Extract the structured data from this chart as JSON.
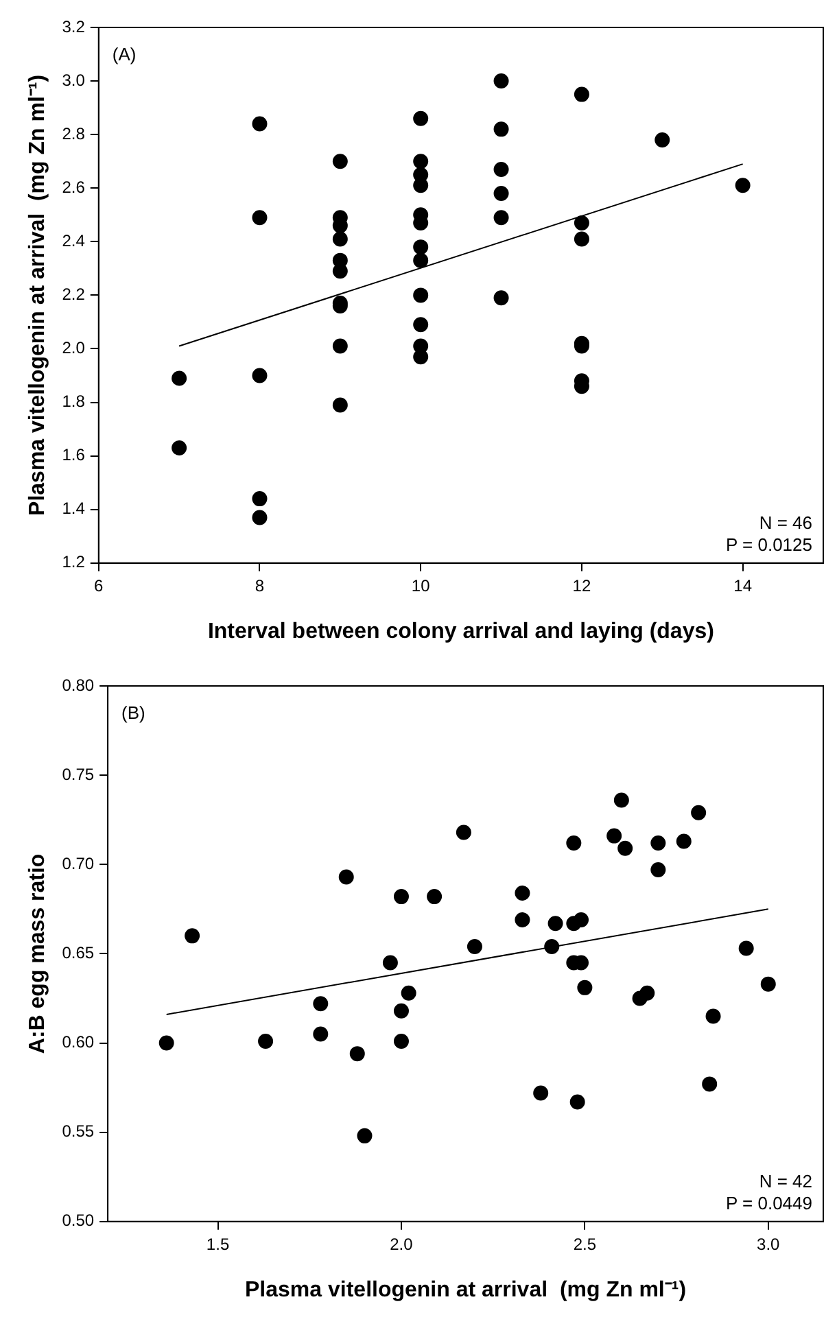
{
  "chart_data": [
    {
      "type": "scatter",
      "xlabel": "Interval between colony arrival and laying (days)",
      "ylabel": "Plasma vitellogenin at arrival  (mg Zn ml⁻¹)",
      "xlim": [
        6,
        15
      ],
      "xticks": [
        6,
        8,
        10,
        12,
        14
      ],
      "ylim": [
        1.2,
        3.2
      ],
      "yticks": [
        {
          "value": 1.2,
          "label": "1.2"
        },
        {
          "value": 1.4,
          "label": "1.4"
        },
        {
          "value": 1.6,
          "label": "1.6"
        },
        {
          "value": 1.8,
          "label": "1.8"
        },
        {
          "value": 2.0,
          "label": "2.0"
        },
        {
          "value": 2.2,
          "label": "2.2"
        },
        {
          "value": 2.4,
          "label": "2.4"
        },
        {
          "value": 2.6,
          "label": "2.6"
        },
        {
          "value": 2.8,
          "label": "2.8"
        },
        {
          "value": 3.0,
          "label": "3.0"
        },
        {
          "value": 3.2,
          "label": "3.2"
        }
      ],
      "grid": false,
      "legend": false,
      "marker": "circle",
      "annotations": [
        "(A)",
        "N = 46",
        "P = 0.0125"
      ],
      "series": [
        {
          "color": "#000000",
          "x": [
            7,
            7,
            8,
            8,
            8,
            8,
            8,
            9,
            9,
            9,
            9,
            9,
            9,
            9,
            9,
            9,
            9,
            10,
            10,
            10,
            10,
            10,
            10,
            10,
            10,
            10,
            10,
            10,
            10,
            11,
            11,
            11,
            11,
            11,
            11,
            12,
            12,
            12,
            12,
            12,
            12,
            12,
            13,
            14
          ],
          "values": [
            1.89,
            1.63,
            2.84,
            2.49,
            1.9,
            1.44,
            1.37,
            2.7,
            2.49,
            2.46,
            2.41,
            2.33,
            2.29,
            2.17,
            2.16,
            2.01,
            1.79,
            2.86,
            2.7,
            2.65,
            2.61,
            2.5,
            2.47,
            2.38,
            2.33,
            2.2,
            2.09,
            2.01,
            1.97,
            3.0,
            2.82,
            2.67,
            2.58,
            2.49,
            2.19,
            2.95,
            2.47,
            2.41,
            2.02,
            2.01,
            1.88,
            1.86,
            2.78,
            2.61
          ]
        },
        {
          "type": "line",
          "color": "#000000",
          "marker": "none",
          "x": [
            7,
            14
          ],
          "values": [
            2.01,
            2.69
          ]
        }
      ]
    },
    {
      "type": "scatter",
      "xlabel": "Plasma vitellogenin at arrival  (mg Zn ml⁻¹)",
      "ylabel": "A:B egg mass ratio",
      "xlim": [
        1.2,
        3.15
      ],
      "xticks": [
        {
          "value": 1.5,
          "label": "1.5"
        },
        {
          "value": 2.0,
          "label": "2.0"
        },
        {
          "value": 2.5,
          "label": "2.5"
        },
        {
          "value": 3.0,
          "label": "3.0"
        }
      ],
      "ylim": [
        0.5,
        0.8
      ],
      "yticks": [
        {
          "value": 0.5,
          "label": "0.50"
        },
        {
          "value": 0.55,
          "label": "0.55"
        },
        {
          "value": 0.6,
          "label": "0.60"
        },
        {
          "value": 0.65,
          "label": "0.65"
        },
        {
          "value": 0.7,
          "label": "0.70"
        },
        {
          "value": 0.75,
          "label": "0.75"
        },
        {
          "value": 0.8,
          "label": "0.80"
        }
      ],
      "grid": false,
      "legend": false,
      "marker": "circle",
      "annotations": [
        "(B)",
        "N = 42",
        "P = 0.0449"
      ],
      "series": [
        {
          "color": "#000000",
          "x": [
            1.36,
            1.43,
            1.63,
            1.78,
            1.78,
            1.85,
            1.88,
            1.9,
            1.97,
            2.0,
            2.0,
            2.0,
            2.02,
            2.09,
            2.17,
            2.2,
            2.33,
            2.33,
            2.38,
            2.41,
            2.42,
            2.47,
            2.47,
            2.47,
            2.49,
            2.49,
            2.48,
            2.5,
            2.58,
            2.6,
            2.61,
            2.65,
            2.67,
            2.7,
            2.7,
            2.77,
            2.81,
            2.84,
            2.85,
            2.94,
            3.0
          ],
          "values": [
            0.6,
            0.66,
            0.601,
            0.622,
            0.605,
            0.693,
            0.594,
            0.548,
            0.645,
            0.682,
            0.618,
            0.601,
            0.628,
            0.682,
            0.718,
            0.654,
            0.684,
            0.669,
            0.572,
            0.654,
            0.667,
            0.667,
            0.712,
            0.645,
            0.669,
            0.645,
            0.567,
            0.631,
            0.716,
            0.736,
            0.709,
            0.625,
            0.628,
            0.712,
            0.697,
            0.713,
            0.729,
            0.577,
            0.615,
            0.653,
            0.633
          ]
        },
        {
          "type": "line",
          "color": "#000000",
          "marker": "none",
          "x": [
            1.36,
            3.0
          ],
          "values": [
            0.616,
            0.675
          ]
        }
      ]
    }
  ]
}
